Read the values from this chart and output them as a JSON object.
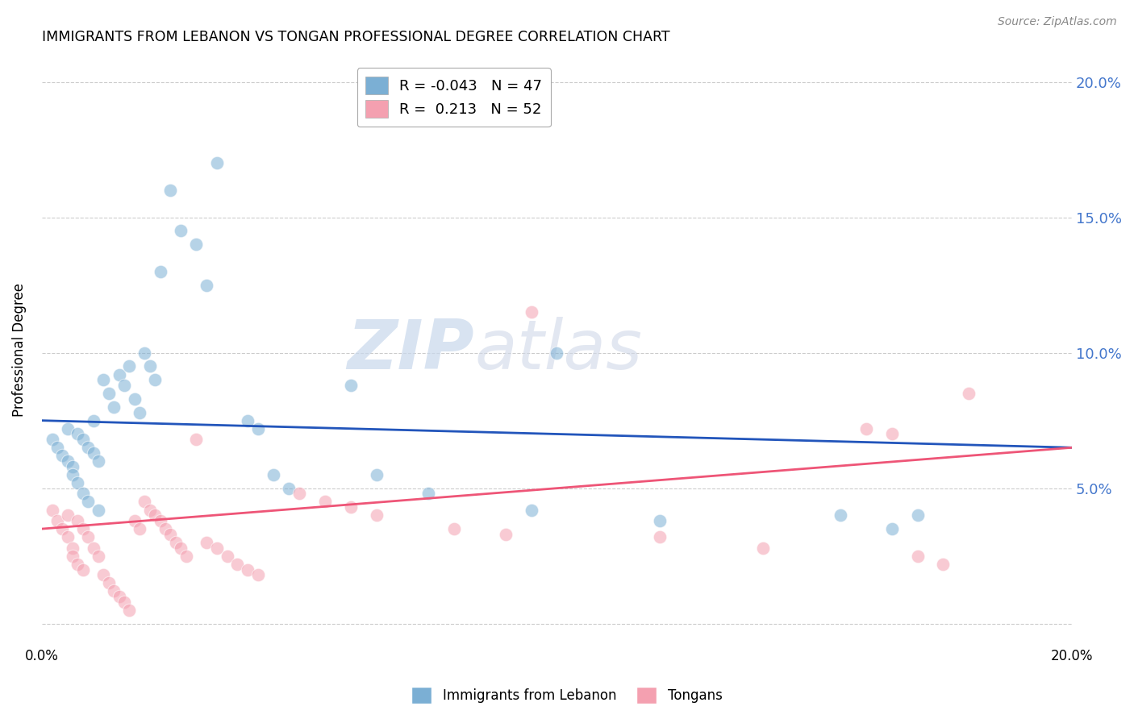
{
  "title": "IMMIGRANTS FROM LEBANON VS TONGAN PROFESSIONAL DEGREE CORRELATION CHART",
  "source": "Source: ZipAtlas.com",
  "ylabel": "Professional Degree",
  "xlim": [
    0.0,
    0.2
  ],
  "ylim": [
    -0.008,
    0.21
  ],
  "yticks": [
    0.0,
    0.05,
    0.1,
    0.15,
    0.2
  ],
  "ytick_labels": [
    "",
    "5.0%",
    "10.0%",
    "15.0%",
    "20.0%"
  ],
  "xticks": [
    0.0,
    0.05,
    0.1,
    0.15,
    0.2
  ],
  "xtick_labels": [
    "0.0%",
    "",
    "",
    "",
    "20.0%"
  ],
  "legend_blue_r": "-0.043",
  "legend_blue_n": "47",
  "legend_pink_r": "0.213",
  "legend_pink_n": "52",
  "blue_color": "#7BAFD4",
  "pink_color": "#F4A0B0",
  "line_blue": "#2255BB",
  "line_pink": "#EE5577",
  "watermark_zip": "ZIP",
  "watermark_atlas": "atlas",
  "blue_scatter_x": [
    0.002,
    0.003,
    0.004,
    0.005,
    0.005,
    0.006,
    0.006,
    0.007,
    0.007,
    0.008,
    0.008,
    0.009,
    0.009,
    0.01,
    0.01,
    0.011,
    0.011,
    0.012,
    0.013,
    0.014,
    0.015,
    0.016,
    0.017,
    0.018,
    0.019,
    0.02,
    0.021,
    0.022,
    0.023,
    0.025,
    0.027,
    0.03,
    0.032,
    0.034,
    0.04,
    0.042,
    0.045,
    0.048,
    0.06,
    0.065,
    0.075,
    0.095,
    0.1,
    0.12,
    0.155,
    0.165,
    0.17
  ],
  "blue_scatter_y": [
    0.068,
    0.065,
    0.062,
    0.06,
    0.072,
    0.058,
    0.055,
    0.07,
    0.052,
    0.068,
    0.048,
    0.065,
    0.045,
    0.063,
    0.075,
    0.06,
    0.042,
    0.09,
    0.085,
    0.08,
    0.092,
    0.088,
    0.095,
    0.083,
    0.078,
    0.1,
    0.095,
    0.09,
    0.13,
    0.16,
    0.145,
    0.14,
    0.125,
    0.17,
    0.075,
    0.072,
    0.055,
    0.05,
    0.088,
    0.055,
    0.048,
    0.042,
    0.1,
    0.038,
    0.04,
    0.035,
    0.04
  ],
  "pink_scatter_x": [
    0.002,
    0.003,
    0.004,
    0.005,
    0.005,
    0.006,
    0.006,
    0.007,
    0.007,
    0.008,
    0.008,
    0.009,
    0.01,
    0.011,
    0.012,
    0.013,
    0.014,
    0.015,
    0.016,
    0.017,
    0.018,
    0.019,
    0.02,
    0.021,
    0.022,
    0.023,
    0.024,
    0.025,
    0.026,
    0.027,
    0.028,
    0.03,
    0.032,
    0.034,
    0.036,
    0.038,
    0.04,
    0.042,
    0.05,
    0.055,
    0.06,
    0.065,
    0.08,
    0.09,
    0.095,
    0.12,
    0.14,
    0.16,
    0.165,
    0.17,
    0.175,
    0.18
  ],
  "pink_scatter_y": [
    0.042,
    0.038,
    0.035,
    0.032,
    0.04,
    0.028,
    0.025,
    0.038,
    0.022,
    0.035,
    0.02,
    0.032,
    0.028,
    0.025,
    0.018,
    0.015,
    0.012,
    0.01,
    0.008,
    0.005,
    0.038,
    0.035,
    0.045,
    0.042,
    0.04,
    0.038,
    0.035,
    0.033,
    0.03,
    0.028,
    0.025,
    0.068,
    0.03,
    0.028,
    0.025,
    0.022,
    0.02,
    0.018,
    0.048,
    0.045,
    0.043,
    0.04,
    0.035,
    0.033,
    0.115,
    0.032,
    0.028,
    0.072,
    0.07,
    0.025,
    0.022,
    0.085
  ]
}
